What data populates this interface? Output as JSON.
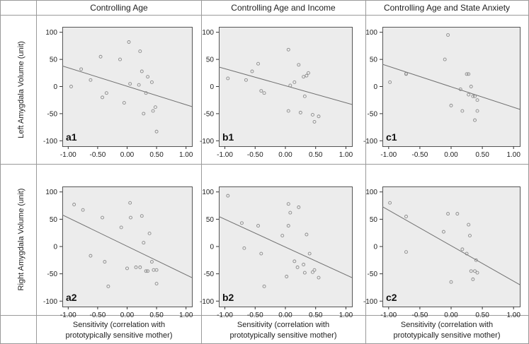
{
  "figure": {
    "column_headers": [
      "Controlling Age",
      "Controlling Age and Income",
      "Controlling Age and State Anxiety"
    ],
    "row_labels": [
      "Left Amygdala Volume (unit)",
      "Right Amygdala Volume (unit)"
    ],
    "x_footer_line1": "Sensitivity  (correlation with",
    "x_footer_line2": "prototypically sensitive mother)"
  },
  "chart_data": [
    {
      "type": "scatter",
      "label": "a1",
      "row": 0,
      "col": 0,
      "xlim": [
        -1.1,
        1.1
      ],
      "ylim": [
        -110,
        110
      ],
      "xticks": [
        -1.0,
        -0.5,
        0.0,
        0.5,
        1.0
      ],
      "xtick_labels": [
        "-1.00",
        "-0.50",
        "0.00",
        "0.50",
        "1.00"
      ],
      "yticks": [
        -100,
        -50,
        0,
        50,
        100
      ],
      "ytick_labels": [
        "-100",
        "-50",
        "0",
        "50",
        "100"
      ],
      "fit_line": {
        "x": [
          -1.1,
          1.1
        ],
        "y": [
          38,
          -37
        ]
      },
      "points": {
        "x": [
          -0.95,
          -0.78,
          -0.62,
          -0.45,
          -0.42,
          -0.35,
          -0.12,
          -0.05,
          0.03,
          0.05,
          0.2,
          0.22,
          0.25,
          0.28,
          0.32,
          0.35,
          0.42,
          0.44,
          0.48,
          0.5
        ],
        "y": [
          0,
          32,
          12,
          55,
          -20,
          -12,
          50,
          -30,
          82,
          5,
          3,
          65,
          28,
          -50,
          -12,
          18,
          8,
          -45,
          -38,
          -83
        ]
      }
    },
    {
      "type": "scatter",
      "label": "b1",
      "row": 0,
      "col": 1,
      "xlim": [
        -1.1,
        1.1
      ],
      "ylim": [
        -110,
        110
      ],
      "xticks": [
        -1.0,
        -0.5,
        0.0,
        0.5,
        1.0
      ],
      "xtick_labels": [
        "-1.00",
        "-0.50",
        "0.00",
        "0.50",
        "1.00"
      ],
      "yticks": [
        -100,
        -50,
        0,
        50,
        100
      ],
      "ytick_labels": [
        "-100",
        "-50",
        "0",
        "50",
        "100"
      ],
      "fit_line": {
        "x": [
          -1.1,
          1.1
        ],
        "y": [
          36,
          -33
        ]
      },
      "points": {
        "x": [
          -0.95,
          -0.65,
          -0.55,
          -0.45,
          -0.4,
          -0.35,
          0.05,
          0.05,
          0.08,
          0.15,
          0.22,
          0.25,
          0.3,
          0.32,
          0.35,
          0.38,
          0.45,
          0.48,
          0.55
        ],
        "y": [
          15,
          12,
          28,
          42,
          -8,
          -12,
          68,
          -45,
          2,
          8,
          40,
          -48,
          18,
          -18,
          20,
          25,
          -52,
          -65,
          -55
        ]
      }
    },
    {
      "type": "scatter",
      "label": "c1",
      "row": 0,
      "col": 2,
      "xlim": [
        -1.1,
        1.1
      ],
      "ylim": [
        -110,
        110
      ],
      "xticks": [
        -1.0,
        -0.5,
        0.0,
        0.5,
        1.0
      ],
      "xtick_labels": [
        "-1.00",
        "-0.50",
        "0.00",
        "0.50",
        "1.00"
      ],
      "yticks": [
        -100,
        -50,
        0,
        50,
        100
      ],
      "ytick_labels": [
        "-100",
        "-50",
        "0",
        "50",
        "100"
      ],
      "fit_line": {
        "x": [
          -1.1,
          1.1
        ],
        "y": [
          41,
          -42
        ]
      },
      "points": {
        "x": [
          -0.98,
          -0.72,
          -0.72,
          -0.1,
          -0.05,
          0.0,
          0.15,
          0.18,
          0.25,
          0.28,
          0.28,
          0.32,
          0.35,
          0.38,
          0.38,
          0.42,
          0.42
        ],
        "y": [
          8,
          23,
          24,
          50,
          95,
          -35,
          -5,
          -45,
          23,
          -15,
          23,
          0,
          -18,
          -18,
          -62,
          -45,
          -25
        ]
      }
    },
    {
      "type": "scatter",
      "label": "a2",
      "row": 1,
      "col": 0,
      "xlim": [
        -1.1,
        1.1
      ],
      "ylim": [
        -110,
        110
      ],
      "xticks": [
        -1.0,
        -0.5,
        0.0,
        0.5,
        1.0
      ],
      "xtick_labels": [
        "-1.00",
        "-0.50",
        "0.00",
        "0.50",
        "1.00"
      ],
      "yticks": [
        -100,
        -50,
        0,
        50,
        100
      ],
      "ytick_labels": [
        "-100",
        "-50",
        "0",
        "50",
        "100"
      ],
      "fit_line": {
        "x": [
          -1.1,
          1.1
        ],
        "y": [
          58,
          -57
        ]
      },
      "points": {
        "x": [
          -0.9,
          -0.75,
          -0.62,
          -0.42,
          -0.38,
          -0.32,
          -0.1,
          0.0,
          0.05,
          0.06,
          0.15,
          0.22,
          0.25,
          0.28,
          0.32,
          0.35,
          0.38,
          0.42,
          0.45,
          0.5,
          0.5
        ],
        "y": [
          77,
          67,
          -17,
          53,
          -28,
          -73,
          35,
          -40,
          80,
          53,
          -38,
          -38,
          56,
          7,
          -45,
          -45,
          24,
          -28,
          -43,
          -43,
          -68
        ]
      }
    },
    {
      "type": "scatter",
      "label": "b2",
      "row": 1,
      "col": 1,
      "xlim": [
        -1.1,
        1.1
      ],
      "ylim": [
        -110,
        110
      ],
      "xticks": [
        -1.0,
        -0.5,
        0.0,
        0.5,
        1.0
      ],
      "xtick_labels": [
        "-1.00",
        "-0.50",
        "0.00",
        "0.50",
        "1.00"
      ],
      "yticks": [
        -100,
        -50,
        0,
        50,
        100
      ],
      "ytick_labels": [
        "-100",
        "-50",
        "0",
        "50",
        "100"
      ],
      "fit_line": {
        "x": [
          -1.1,
          1.1
        ],
        "y": [
          55,
          -57
        ]
      },
      "points": {
        "x": [
          -0.95,
          -0.72,
          -0.68,
          -0.45,
          -0.4,
          -0.35,
          -0.05,
          0.02,
          0.05,
          0.05,
          0.08,
          0.15,
          0.2,
          0.22,
          0.3,
          0.32,
          0.35,
          0.4,
          0.45,
          0.48,
          0.55
        ],
        "y": [
          93,
          43,
          -3,
          38,
          -13,
          -73,
          20,
          -55,
          78,
          38,
          62,
          -27,
          -38,
          72,
          -33,
          -48,
          22,
          -13,
          -47,
          -43,
          -57
        ]
      }
    },
    {
      "type": "scatter",
      "label": "c2",
      "row": 1,
      "col": 2,
      "xlim": [
        -1.1,
        1.1
      ],
      "ylim": [
        -110,
        110
      ],
      "xticks": [
        -1.0,
        -0.5,
        0.0,
        0.5,
        1.0
      ],
      "xtick_labels": [
        "-1.00",
        "-0.50",
        "0.00",
        "0.50",
        "1.00"
      ],
      "yticks": [
        -100,
        -50,
        0,
        50,
        100
      ],
      "ytick_labels": [
        "-100",
        "-50",
        "0",
        "50",
        "100"
      ],
      "fit_line": {
        "x": [
          -1.1,
          1.1
        ],
        "y": [
          73,
          -70
        ]
      },
      "points": {
        "x": [
          -0.98,
          -0.72,
          -0.72,
          -0.12,
          -0.05,
          0.0,
          0.1,
          0.18,
          0.25,
          0.28,
          0.3,
          0.32,
          0.35,
          0.38,
          0.4,
          0.42
        ],
        "y": [
          80,
          55,
          -10,
          27,
          60,
          -65,
          60,
          -5,
          -13,
          40,
          20,
          -45,
          -60,
          -45,
          -25,
          -48
        ]
      }
    }
  ]
}
